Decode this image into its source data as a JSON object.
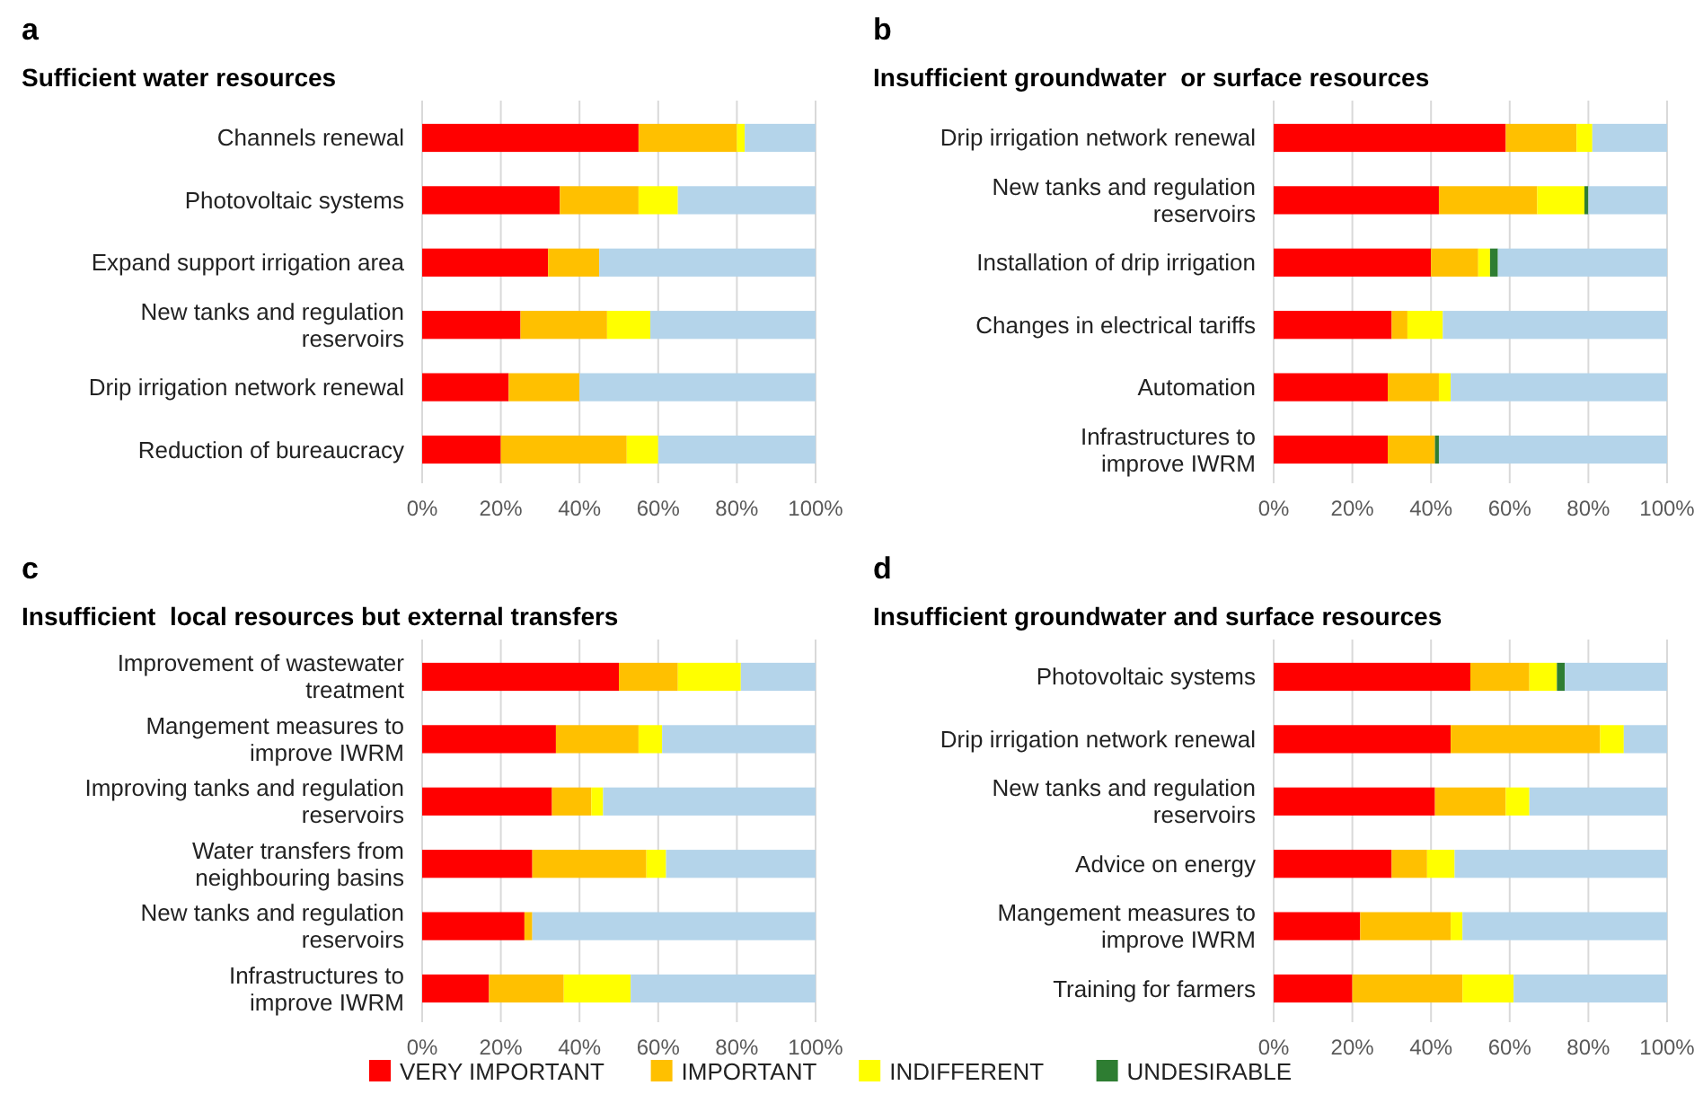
{
  "chart_data": [
    {
      "type": "bar",
      "orientation": "horizontal",
      "stacked": true,
      "annotations": [
        "a"
      ],
      "title": "Sufficient water resources",
      "categories": [
        "Channels renewal",
        "Photovoltaic systems",
        "Expand support irrigation area",
        "New tanks and regulation\nreservoirs",
        "Drip irrigation network renewal",
        "Reduction of bureaucracy"
      ],
      "series": [
        {
          "color": "#ff0000",
          "values": [
            55,
            35,
            32,
            25,
            22,
            20
          ]
        },
        {
          "color": "#ffc000",
          "values": [
            25,
            20,
            13,
            22,
            18,
            32
          ]
        },
        {
          "color": "#ffff00",
          "values": [
            2,
            10,
            0,
            11,
            0,
            8
          ]
        },
        {
          "color": "#2e7d32",
          "values": [
            0,
            0,
            0,
            0,
            0,
            0
          ]
        },
        {
          "color": "#b4d4ea",
          "values": [
            18,
            35,
            55,
            42,
            60,
            40
          ]
        }
      ],
      "xlim": [
        0,
        100
      ],
      "xticks": [
        {
          "value": 0,
          "label": "0%"
        },
        {
          "value": 20,
          "label": "20%"
        },
        {
          "value": 40,
          "label": "40%"
        },
        {
          "value": 60,
          "label": "60%"
        },
        {
          "value": 80,
          "label": "80%"
        },
        {
          "value": 100,
          "label": "100%"
        }
      ],
      "grid": "x"
    },
    {
      "type": "bar",
      "orientation": "horizontal",
      "stacked": true,
      "annotations": [
        "b"
      ],
      "title": "Insufficient groundwater  or surface resources",
      "categories": [
        "Drip irrigation network renewal",
        "New tanks and regulation\nreservoirs",
        "Installation of drip irrigation",
        "Changes in electrical tariffs",
        "Automation",
        "Infrastructures to\nimprove IWRM"
      ],
      "series": [
        {
          "color": "#ff0000",
          "values": [
            59,
            42,
            40,
            30,
            29,
            29
          ]
        },
        {
          "color": "#ffc000",
          "values": [
            18,
            25,
            12,
            4,
            13,
            12
          ]
        },
        {
          "color": "#ffff00",
          "values": [
            4,
            12,
            3,
            9,
            3,
            0
          ]
        },
        {
          "color": "#2e7d32",
          "values": [
            0,
            1,
            2,
            0,
            0,
            1
          ]
        },
        {
          "color": "#b4d4ea",
          "values": [
            19,
            20,
            43,
            57,
            55,
            58
          ]
        }
      ],
      "xlim": [
        0,
        100
      ],
      "xticks": [
        {
          "value": 0,
          "label": "0%"
        },
        {
          "value": 20,
          "label": "20%"
        },
        {
          "value": 40,
          "label": "40%"
        },
        {
          "value": 60,
          "label": "60%"
        },
        {
          "value": 80,
          "label": "80%"
        },
        {
          "value": 100,
          "label": "100%"
        }
      ],
      "grid": "x"
    },
    {
      "type": "bar",
      "orientation": "horizontal",
      "stacked": true,
      "annotations": [
        "c"
      ],
      "title": "Insufficient  local resources but external transfers",
      "categories": [
        "Improvement of wastewater\ntreatment",
        "Mangement measures to\nimprove IWRM",
        "Improving tanks and regulation\nreservoirs",
        "Water transfers from\nneighbouring basins",
        "New tanks and regulation\nreservoirs",
        "Infrastructures to\nimprove IWRM"
      ],
      "series": [
        {
          "color": "#ff0000",
          "values": [
            50,
            34,
            33,
            28,
            26,
            17
          ]
        },
        {
          "color": "#ffc000",
          "values": [
            15,
            21,
            10,
            29,
            2,
            19
          ]
        },
        {
          "color": "#ffff00",
          "values": [
            16,
            6,
            3,
            5,
            0,
            17
          ]
        },
        {
          "color": "#2e7d32",
          "values": [
            0,
            0,
            0,
            0,
            0,
            0
          ]
        },
        {
          "color": "#b4d4ea",
          "values": [
            19,
            39,
            54,
            38,
            72,
            47
          ]
        }
      ],
      "xlim": [
        0,
        100
      ],
      "xticks": [
        {
          "value": 0,
          "label": "0%"
        },
        {
          "value": 20,
          "label": "20%"
        },
        {
          "value": 40,
          "label": "40%"
        },
        {
          "value": 60,
          "label": "60%"
        },
        {
          "value": 80,
          "label": "80%"
        },
        {
          "value": 100,
          "label": "100%"
        }
      ],
      "grid": "x"
    },
    {
      "type": "bar",
      "orientation": "horizontal",
      "stacked": true,
      "annotations": [
        "d"
      ],
      "title": "Insufficient groundwater and surface resources",
      "categories": [
        "Photovoltaic systems",
        "Drip irrigation network renewal",
        "New tanks and regulation\nreservoirs",
        "Advice on energy",
        "Mangement measures to\nimprove IWRM",
        "Training for farmers"
      ],
      "series": [
        {
          "name": "VERY IMPORTANT",
          "color": "#ff0000",
          "values": [
            50,
            45,
            41,
            30,
            22,
            20
          ]
        },
        {
          "name": "IMPORTANT",
          "color": "#ffc000",
          "values": [
            15,
            38,
            18,
            9,
            23,
            28
          ]
        },
        {
          "name": "INDIFFERENT",
          "color": "#ffff00",
          "values": [
            7,
            6,
            6,
            7,
            3,
            13
          ]
        },
        {
          "name": "UNDESIRABLE",
          "color": "#2e7d32",
          "values": [
            2,
            0,
            0,
            0,
            0,
            0
          ]
        },
        {
          "color": "#b4d4ea",
          "values": [
            26,
            11,
            35,
            54,
            52,
            39
          ]
        }
      ],
      "xlim": [
        0,
        100
      ],
      "xticks": [
        {
          "value": 0,
          "label": "0%"
        },
        {
          "value": 20,
          "label": "20%"
        },
        {
          "value": 40,
          "label": "40%"
        },
        {
          "value": 60,
          "label": "60%"
        },
        {
          "value": 80,
          "label": "80%"
        },
        {
          "value": 100,
          "label": "100%"
        }
      ],
      "grid": "x",
      "legend": "bottom"
    }
  ]
}
